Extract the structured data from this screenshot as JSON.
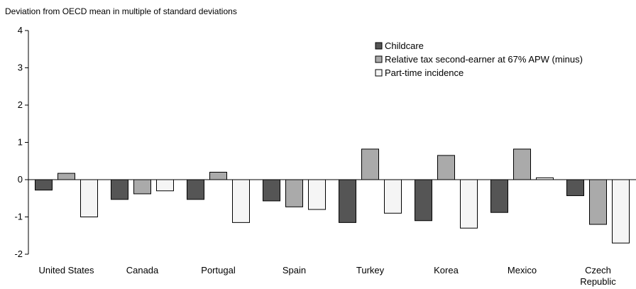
{
  "chart_data": {
    "type": "bar",
    "title": "",
    "ylabel": "Deviation from OECD mean in multiple of standard deviations",
    "xlabel": "",
    "ylim": [
      -2,
      4
    ],
    "yticks": [
      4,
      3,
      2,
      1,
      0,
      -1,
      -2
    ],
    "ytick_labels": [
      "4",
      "3",
      "2",
      "1",
      "0",
      "-1",
      "-2"
    ],
    "grid": false,
    "legend_position": "top-right",
    "categories": [
      "United States",
      "Canada",
      "Portugal",
      "Spain",
      "Turkey",
      "Korea",
      "Mexico",
      "Czech Republic"
    ],
    "category_label_lines": [
      [
        "United States"
      ],
      [
        "Canada"
      ],
      [
        "Portugal"
      ],
      [
        "Spain"
      ],
      [
        "Turkey"
      ],
      [
        "Korea"
      ],
      [
        "Mexico"
      ],
      [
        "Czech",
        "Republic"
      ]
    ],
    "series": [
      {
        "name": "Childcare",
        "color": "#555555",
        "values": [
          -0.28,
          -0.53,
          -0.53,
          -0.57,
          -1.15,
          -1.1,
          -0.88,
          -0.43
        ]
      },
      {
        "name": "Relative tax second-earner at 67% APW (minus)",
        "color": "#aaaaaa",
        "values": [
          0.17,
          -0.38,
          0.2,
          -0.73,
          0.82,
          0.65,
          0.82,
          -1.2
        ]
      },
      {
        "name": "Part-time incidence",
        "color": "#f5f5f5",
        "values": [
          -1.0,
          -0.3,
          -1.15,
          -0.8,
          -0.9,
          -1.3,
          0.05,
          -1.7
        ]
      }
    ]
  }
}
